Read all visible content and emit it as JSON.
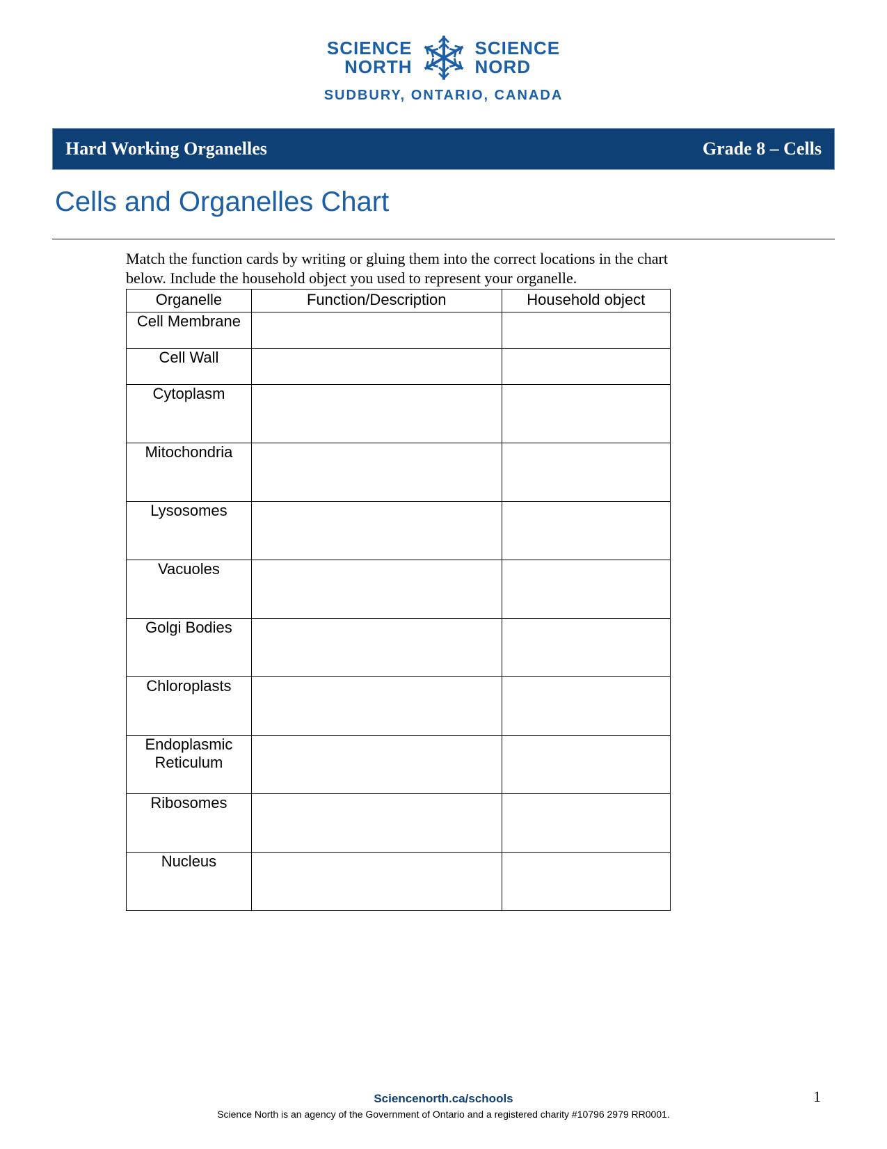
{
  "logo": {
    "left_line1": "SCIENCE",
    "left_line2": "NORTH",
    "right_line1": "SCIENCE",
    "right_line2": "NORD",
    "subtitle": "SUDBURY, ONTARIO, CANADA",
    "snowflake_color": "#1b5fa8",
    "text_color": "#1b5fa8"
  },
  "header": {
    "left": "Hard Working Organelles",
    "right": "Grade 8 – Cells",
    "background_color": "#0e4076",
    "border_color": "#6d93b8",
    "text_color": "#ffffff"
  },
  "title": "Cells and Organelles Chart",
  "title_color": "#1b5fa8",
  "instructions": "Match the function cards by writing or gluing them into the correct locations in the chart below.  Include the household object you used to represent your organelle.",
  "table": {
    "columns": [
      "Organelle",
      "Function/Description",
      "Household object"
    ],
    "rows": [
      {
        "organelle": "Cell Membrane",
        "function": "",
        "household": "",
        "height": "short"
      },
      {
        "organelle": "Cell Wall",
        "function": "",
        "household": "",
        "height": "short"
      },
      {
        "organelle": "Cytoplasm",
        "function": "",
        "household": "",
        "height": "tall"
      },
      {
        "organelle": "Mitochondria",
        "function": "",
        "household": "",
        "height": "tall"
      },
      {
        "organelle": "Lysosomes",
        "function": "",
        "household": "",
        "height": "tall"
      },
      {
        "organelle": "Vacuoles",
        "function": "",
        "household": "",
        "height": "tall"
      },
      {
        "organelle": "Golgi Bodies",
        "function": "",
        "household": "",
        "height": "tall"
      },
      {
        "organelle": "Chloroplasts",
        "function": "",
        "household": "",
        "height": "tall"
      },
      {
        "organelle": "Endoplasmic Reticulum",
        "function": "",
        "household": "",
        "height": "tall"
      },
      {
        "organelle": "Ribosomes",
        "function": "",
        "household": "",
        "height": "tall"
      },
      {
        "organelle": "Nucleus",
        "function": "",
        "household": "",
        "height": "tall"
      }
    ],
    "border_color": "#000000"
  },
  "footer": {
    "link": "Sciencenorth.ca/schools",
    "text": "Science North is an agency of the Government of Ontario and a registered charity #10796 2979 RR0001.",
    "link_color": "#0e4076"
  },
  "page_number": "1"
}
